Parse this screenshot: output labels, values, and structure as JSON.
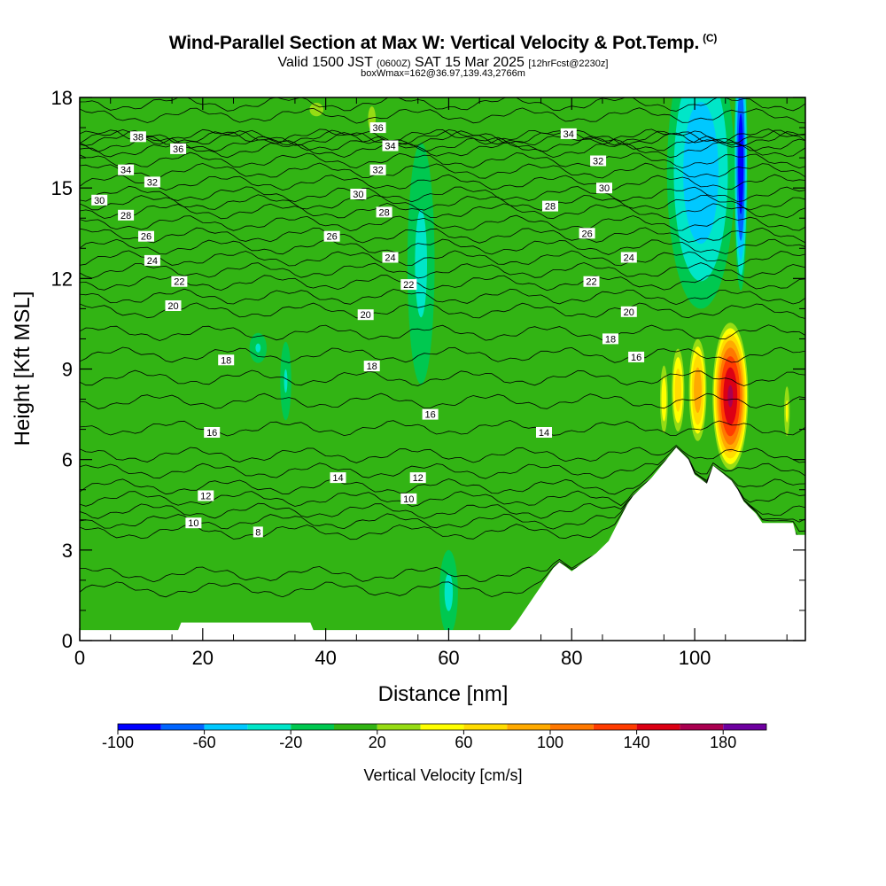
{
  "chart_data": {
    "type": "heatmap",
    "title": "Wind-Parallel Section at Max W: Vertical Velocity & Pot.Temp.",
    "copyright": "(C)",
    "subtitle": {
      "valid_prefix": "Valid 1500 JST",
      "utc": "(0600Z)",
      "date": "SAT 15 Mar 2025",
      "forecast": "[12hrFcst@2230z]",
      "box": "boxWmax=162@36.97,139.43,2766m"
    },
    "xlabel": "Distance [nm]",
    "ylabel": "Height [Kft MSL]",
    "xlim": [
      0,
      118
    ],
    "ylim": [
      0,
      18
    ],
    "x_ticks": [
      "0",
      "20",
      "40",
      "60",
      "80",
      "100"
    ],
    "y_ticks": [
      "0",
      "3",
      "6",
      "9",
      "12",
      "15",
      "18"
    ],
    "colorbar": {
      "label": "Vertical Velocity [cm/s]",
      "tick_labels": [
        "-100",
        "-60",
        "-20",
        "20",
        "60",
        "100",
        "140",
        "180"
      ],
      "bounds": [
        -100,
        -80,
        -60,
        -40,
        -20,
        0,
        20,
        40,
        60,
        80,
        100,
        120,
        140,
        160,
        180,
        200
      ],
      "colors": [
        "#0000ff",
        "#0064ff",
        "#00c8ff",
        "#00e6c8",
        "#00c850",
        "#32b414",
        "#96dc14",
        "#ffff00",
        "#ffdc00",
        "#ffaa00",
        "#ff7800",
        "#ff3c00",
        "#dc0014",
        "#aa0050",
        "#6e00a0"
      ]
    },
    "terrain_kft": [
      [
        0,
        0.35
      ],
      [
        16,
        0.35
      ],
      [
        16.5,
        0.6
      ],
      [
        37.5,
        0.6
      ],
      [
        38,
        0.35
      ],
      [
        70,
        0.35
      ],
      [
        71,
        0.6
      ],
      [
        72,
        0.9
      ],
      [
        73,
        1.2
      ],
      [
        74,
        1.5
      ],
      [
        75,
        1.8
      ],
      [
        76,
        2.1
      ],
      [
        77,
        2.4
      ],
      [
        78,
        2.6
      ],
      [
        80,
        2.3
      ],
      [
        82,
        2.6
      ],
      [
        84,
        2.9
      ],
      [
        86,
        3.3
      ],
      [
        87,
        3.7
      ],
      [
        88,
        4.1
      ],
      [
        89,
        4.5
      ],
      [
        90,
        4.8
      ],
      [
        91,
        5.0
      ],
      [
        93,
        5.4
      ],
      [
        95,
        5.9
      ],
      [
        97,
        6.4
      ],
      [
        99,
        6.0
      ],
      [
        100,
        5.5
      ],
      [
        102,
        5.2
      ],
      [
        103,
        5.8
      ],
      [
        106,
        5.3
      ],
      [
        107,
        5.0
      ],
      [
        108,
        4.6
      ],
      [
        110,
        4.2
      ],
      [
        111,
        3.9
      ],
      [
        116,
        3.9
      ],
      [
        116.5,
        3.5
      ],
      [
        118,
        3.5
      ]
    ],
    "contour_labels": [
      {
        "text": "38",
        "x": 9.5,
        "y": 16.7
      },
      {
        "text": "36",
        "x": 16,
        "y": 16.3
      },
      {
        "text": "36",
        "x": 48.5,
        "y": 17.0
      },
      {
        "text": "34",
        "x": 50.5,
        "y": 16.4
      },
      {
        "text": "34",
        "x": 79.5,
        "y": 16.8
      },
      {
        "text": "34",
        "x": 7.5,
        "y": 15.6
      },
      {
        "text": "32",
        "x": 11.8,
        "y": 15.2
      },
      {
        "text": "32",
        "x": 48.5,
        "y": 15.6
      },
      {
        "text": "32",
        "x": 84.3,
        "y": 15.9
      },
      {
        "text": "30",
        "x": 3.2,
        "y": 14.6
      },
      {
        "text": "30",
        "x": 45.3,
        "y": 14.8
      },
      {
        "text": "30",
        "x": 85.3,
        "y": 15.0
      },
      {
        "text": "28",
        "x": 7.5,
        "y": 14.1
      },
      {
        "text": "28",
        "x": 49.5,
        "y": 14.2
      },
      {
        "text": "28",
        "x": 76.5,
        "y": 14.4
      },
      {
        "text": "26",
        "x": 10.8,
        "y": 13.4
      },
      {
        "text": "26",
        "x": 41,
        "y": 13.4
      },
      {
        "text": "26",
        "x": 82.5,
        "y": 13.5
      },
      {
        "text": "24",
        "x": 11.8,
        "y": 12.6
      },
      {
        "text": "24",
        "x": 50.5,
        "y": 12.7
      },
      {
        "text": "24",
        "x": 89.3,
        "y": 12.7
      },
      {
        "text": "22",
        "x": 16.2,
        "y": 11.9
      },
      {
        "text": "22",
        "x": 53.5,
        "y": 11.8
      },
      {
        "text": "22",
        "x": 83.2,
        "y": 11.9
      },
      {
        "text": "20",
        "x": 15.2,
        "y": 11.1
      },
      {
        "text": "20",
        "x": 46.5,
        "y": 10.8
      },
      {
        "text": "20",
        "x": 89.3,
        "y": 10.9
      },
      {
        "text": "18",
        "x": 23.8,
        "y": 9.3
      },
      {
        "text": "18",
        "x": 47.5,
        "y": 9.1
      },
      {
        "text": "18",
        "x": 86.3,
        "y": 10.0
      },
      {
        "text": "16",
        "x": 90.5,
        "y": 9.4
      },
      {
        "text": "16",
        "x": 57,
        "y": 7.5
      },
      {
        "text": "16",
        "x": 21.5,
        "y": 6.9
      },
      {
        "text": "14",
        "x": 75.5,
        "y": 6.9
      },
      {
        "text": "14",
        "x": 42,
        "y": 5.4
      },
      {
        "text": "12",
        "x": 55,
        "y": 5.4
      },
      {
        "text": "12",
        "x": 20.5,
        "y": 4.8
      },
      {
        "text": "10",
        "x": 53.5,
        "y": 4.7
      },
      {
        "text": "10",
        "x": 18.5,
        "y": 3.9
      },
      {
        "text": "8",
        "x": 29,
        "y": 3.6
      }
    ],
    "w_features": [
      {
        "kind": "updraft",
        "x": 105.8,
        "y": 8.1,
        "rx": 3.1,
        "ry": 2.6,
        "peak": 162
      },
      {
        "kind": "updraft",
        "x": 100.5,
        "y": 8.3,
        "rx": 1.6,
        "ry": 1.9,
        "peak": 95
      },
      {
        "kind": "updraft",
        "x": 97.3,
        "y": 8.3,
        "rx": 1.2,
        "ry": 1.6,
        "peak": 75
      },
      {
        "kind": "updraft",
        "x": 95.0,
        "y": 8.0,
        "rx": 0.8,
        "ry": 1.4,
        "peak": 55
      },
      {
        "kind": "updraft",
        "x": 115.0,
        "y": 7.6,
        "rx": 0.6,
        "ry": 1.1,
        "peak": 45
      },
      {
        "kind": "downdraft",
        "x": 107.5,
        "y": 15.8,
        "rx": 1.1,
        "ry": 4.2,
        "peak": -95
      },
      {
        "kind": "downdraft",
        "x": 101.0,
        "y": 15.5,
        "rx": 5.5,
        "ry": 4.5,
        "peak": -55
      },
      {
        "kind": "downdraft",
        "x": 55.5,
        "y": 12.5,
        "rx": 2.2,
        "ry": 4.0,
        "peak": -25
      },
      {
        "kind": "downdraft",
        "x": 60.0,
        "y": 1.6,
        "rx": 1.5,
        "ry": 1.4,
        "peak": -25
      },
      {
        "kind": "downdraft",
        "x": 33.5,
        "y": 8.6,
        "rx": 0.9,
        "ry": 1.3,
        "peak": -22
      },
      {
        "kind": "downdraft",
        "x": 29,
        "y": 9.7,
        "rx": 1.4,
        "ry": 0.5,
        "peak": -22
      },
      {
        "kind": "updraft",
        "x": 47.5,
        "y": 17.3,
        "rx": 1.4,
        "ry": 0.9,
        "peak": 25
      },
      {
        "kind": "updraft",
        "x": 38.5,
        "y": 17.6,
        "rx": 2.5,
        "ry": 0.5,
        "peak": 25
      }
    ]
  }
}
